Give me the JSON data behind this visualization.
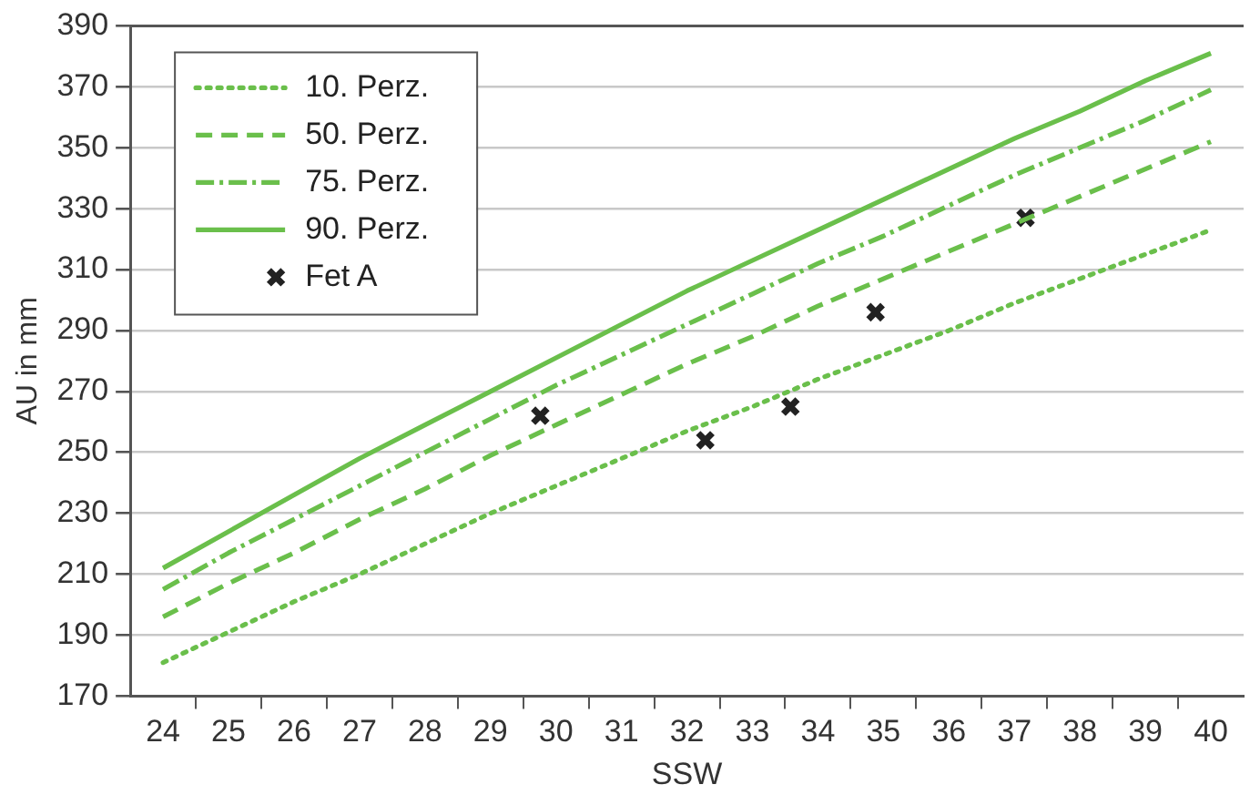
{
  "chart_data": {
    "type": "line",
    "xlabel": "SSW",
    "ylabel": "AU in mm",
    "x": [
      24,
      25,
      26,
      27,
      28,
      29,
      30,
      31,
      32,
      33,
      34,
      35,
      36,
      37,
      38,
      39,
      40
    ],
    "series": [
      {
        "name": "10. Perz.",
        "color": "#6abf4b",
        "line_style": "dotted",
        "values": [
          181,
          191,
          201,
          210,
          220,
          230,
          239,
          248,
          257,
          265,
          274,
          282,
          290,
          299,
          307,
          315,
          323
        ]
      },
      {
        "name": "50. Perz.",
        "color": "#6abf4b",
        "line_style": "dashed",
        "values": [
          196,
          207,
          217,
          228,
          238,
          249,
          259,
          269,
          279,
          288,
          298,
          307,
          316,
          325,
          334,
          343,
          352
        ]
      },
      {
        "name": "75. Perz.",
        "color": "#6abf4b",
        "line_style": "dashdot",
        "values": [
          205,
          217,
          228,
          239,
          250,
          261,
          272,
          282,
          292,
          302,
          312,
          321,
          331,
          341,
          350,
          359,
          369
        ]
      },
      {
        "name": "90. Perz.",
        "color": "#6abf4b",
        "line_style": "solid",
        "values": [
          212,
          224,
          236,
          248,
          259,
          270,
          281,
          292,
          303,
          313,
          323,
          333,
          343,
          353,
          362,
          372,
          381
        ]
      },
      {
        "name": "Fet A",
        "type": "scatter",
        "color": "#222222",
        "marker": "cross",
        "x": [
          29.76,
          32.28,
          33.58,
          34.88,
          37.17
        ],
        "values": [
          262,
          254,
          265,
          296,
          327
        ]
      }
    ],
    "xlim": [
      23.5,
      40.5
    ],
    "xticks": [
      24,
      {
        "value": 24.5,
        "label": null
      },
      25,
      {
        "value": 25.5,
        "label": null
      },
      26,
      {
        "value": 26.5,
        "label": null
      },
      27,
      {
        "value": 27.5,
        "label": null
      },
      28,
      {
        "value": 28.5,
        "label": null
      },
      29,
      {
        "value": 29.5,
        "label": null
      },
      30,
      {
        "value": 30.5,
        "label": null
      },
      31,
      {
        "value": 31.5,
        "label": null
      },
      32,
      {
        "value": 32.5,
        "label": null
      },
      33,
      {
        "value": 33.5,
        "label": null
      },
      34,
      {
        "value": 34.5,
        "label": null
      },
      35,
      {
        "value": 35.5,
        "label": null
      },
      36,
      {
        "value": 36.5,
        "label": null
      },
      37,
      {
        "value": 37.5,
        "label": null
      },
      38,
      {
        "value": 38.5,
        "label": null
      },
      39,
      {
        "value": 39.5,
        "label": null
      },
      40
    ],
    "ylim": [
      170,
      390
    ],
    "yticks": [
      170,
      190,
      210,
      230,
      250,
      270,
      290,
      310,
      330,
      350,
      370,
      390
    ],
    "grid": "y",
    "legend": "top left"
  }
}
